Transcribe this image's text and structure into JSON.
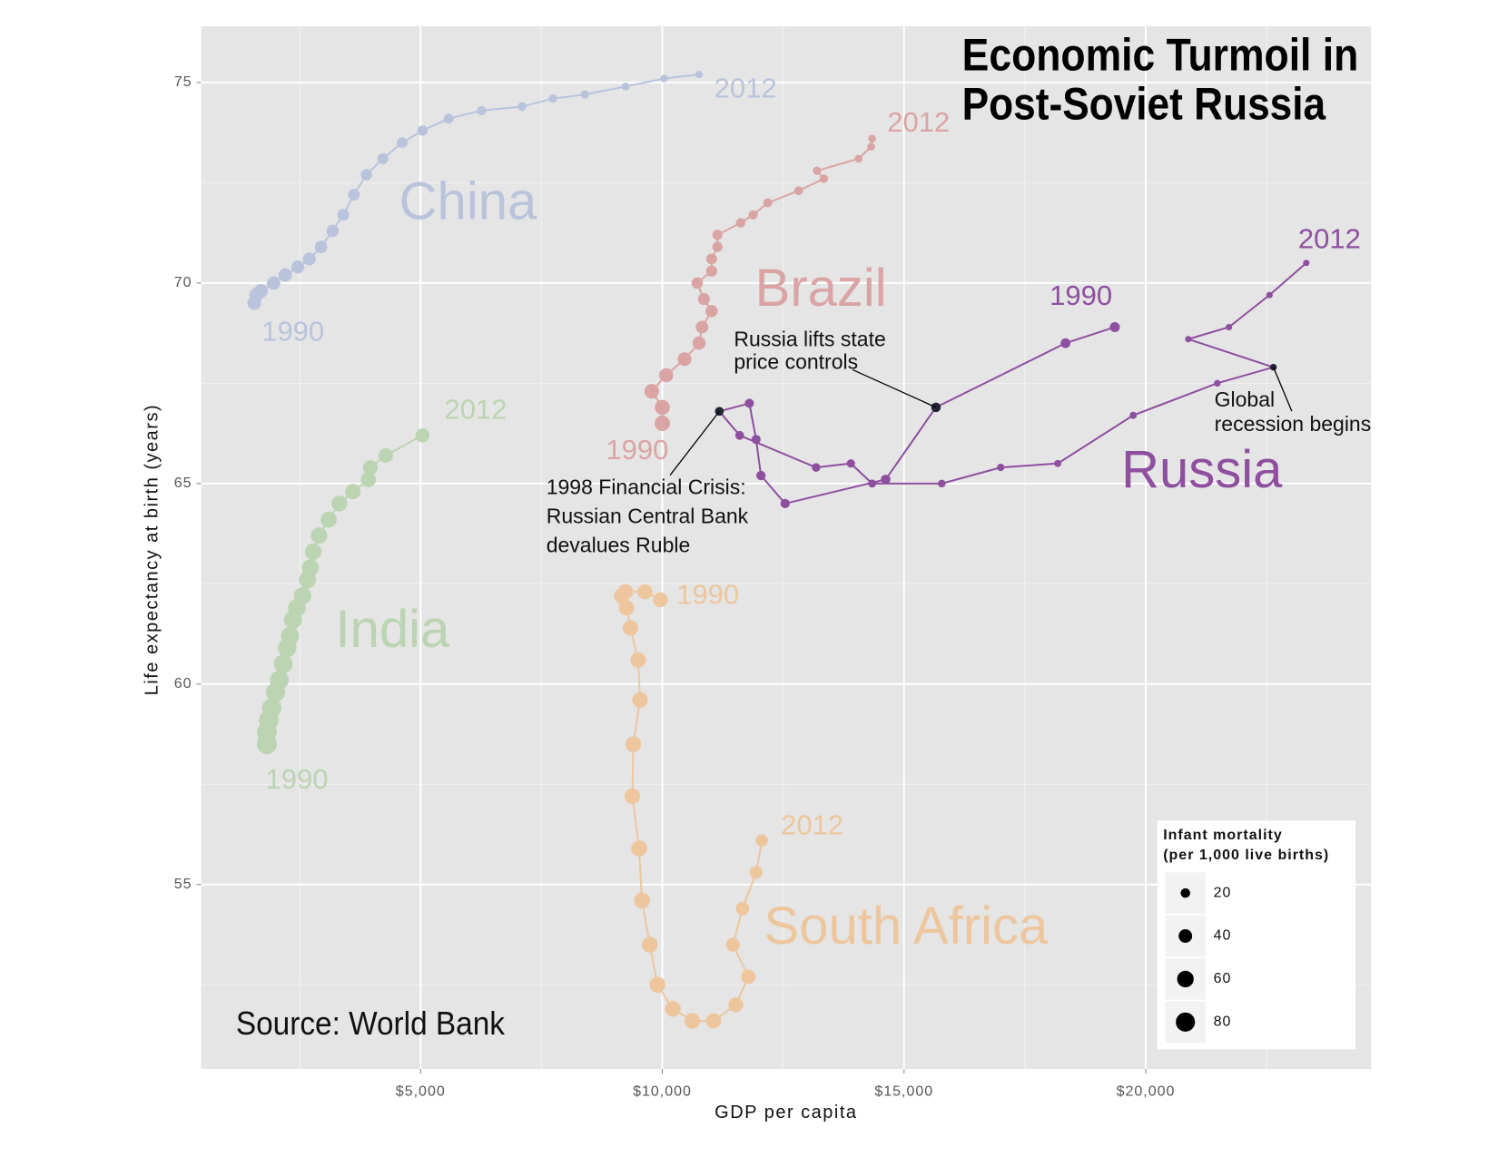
{
  "chart_data": {
    "type": "connected-scatter",
    "title": [
      "Economic Turmoil in",
      "Post-Soviet Russia"
    ],
    "source": "Source: World Bank",
    "xlabel": "GDP per capita",
    "ylabel": "Life expectancy at birth (years)",
    "xlim": [
      460,
      24660
    ],
    "ylim": [
      50.4,
      76.4
    ],
    "xticks": [
      {
        "value": 5000,
        "label": "$5,000"
      },
      {
        "value": 10000,
        "label": "$10,000"
      },
      {
        "value": 15000,
        "label": "$15,000"
      },
      {
        "value": 20000,
        "label": "$20,000"
      }
    ],
    "yticks": [
      55,
      60,
      65,
      70,
      75
    ],
    "x_minor_ticks": [
      2500,
      7500,
      12500,
      17500,
      22500
    ],
    "y_minor_ticks": [
      52.5,
      57.5,
      62.5,
      67.5,
      72.5
    ],
    "grid": true,
    "highlight_color": "#1f2533",
    "series": [
      {
        "name": "China",
        "color": "#b9c4dc",
        "start_label": "1990",
        "end_label": "2012",
        "x": [
          1560,
          1600,
          1700,
          1960,
          2200,
          2460,
          2700,
          2940,
          3180,
          3400,
          3620,
          3880,
          4220,
          4620,
          5040,
          5580,
          6260,
          7100,
          7740,
          8400,
          9240,
          10040,
          10760
        ],
        "values": [
          69.5,
          69.7,
          69.8,
          70.0,
          70.2,
          70.4,
          70.6,
          70.9,
          71.3,
          71.7,
          72.2,
          72.7,
          73.1,
          73.5,
          73.8,
          74.1,
          74.3,
          74.4,
          74.6,
          74.7,
          74.9,
          75.1,
          75.2
        ],
        "sizes": [
          42,
          42,
          41,
          40,
          39,
          37,
          36,
          34,
          33,
          31,
          30,
          28,
          26,
          25,
          23,
          21,
          19,
          17,
          16,
          15,
          14,
          13,
          12
        ]
      },
      {
        "name": "Brazil",
        "color": "#dba4a4",
        "start_label": "1990",
        "end_label": "2012",
        "x": [
          10000,
          10000,
          9780,
          10080,
          10460,
          10760,
          10820,
          11020,
          10860,
          10720,
          11020,
          11020,
          11140,
          11140,
          11620,
          11880,
          12180,
          12820,
          13340,
          13200,
          14060,
          14320,
          14340
        ],
        "values": [
          66.5,
          66.9,
          67.3,
          67.7,
          68.1,
          68.5,
          68.9,
          69.3,
          69.6,
          70.0,
          70.3,
          70.6,
          70.9,
          71.2,
          71.5,
          71.7,
          72.0,
          72.3,
          72.6,
          72.8,
          73.1,
          73.4,
          73.6
        ],
        "sizes": [
          52,
          49,
          46,
          43,
          41,
          38,
          35,
          33,
          31,
          29,
          27,
          25,
          23,
          22,
          20,
          19,
          18,
          17,
          16,
          15,
          14,
          13,
          13
        ]
      },
      {
        "name": "India",
        "color": "#bbd4b2",
        "start_label": "1990",
        "end_label": "2012",
        "x": [
          1820,
          1820,
          1860,
          1920,
          2000,
          2080,
          2160,
          2240,
          2300,
          2360,
          2440,
          2560,
          2660,
          2720,
          2780,
          2900,
          3100,
          3320,
          3600,
          3920,
          3960,
          4280,
          5040
        ],
        "values": [
          58.5,
          58.8,
          59.1,
          59.4,
          59.8,
          60.1,
          60.5,
          60.9,
          61.2,
          61.6,
          61.9,
          62.2,
          62.6,
          62.9,
          63.3,
          63.7,
          64.1,
          64.5,
          64.8,
          65.1,
          65.4,
          65.7,
          66.2
        ],
        "sizes": [
          88,
          86,
          84,
          82,
          80,
          78,
          76,
          74,
          72,
          70,
          68,
          66,
          64,
          62,
          60,
          58,
          56,
          54,
          52,
          50,
          47,
          45,
          42
        ]
      },
      {
        "name": "South Africa",
        "color": "#edc69d",
        "start_label": "1990",
        "end_label": "2012",
        "x": [
          9960,
          9640,
          9240,
          9160,
          9260,
          9340,
          9500,
          9540,
          9400,
          9380,
          9520,
          9580,
          9740,
          9900,
          10220,
          10620,
          11060,
          11520,
          11780,
          11460,
          11660,
          11940,
          12060
        ],
        "values": [
          62.1,
          62.3,
          62.3,
          62.2,
          61.9,
          61.4,
          60.6,
          59.6,
          58.5,
          57.2,
          55.9,
          54.6,
          53.5,
          52.5,
          51.9,
          51.6,
          51.6,
          52.0,
          52.7,
          53.5,
          54.4,
          55.3,
          56.1
        ],
        "sizes": [
          48,
          49,
          50,
          51,
          52,
          52,
          53,
          53,
          54,
          54,
          55,
          55,
          55,
          55,
          54,
          53,
          51,
          48,
          45,
          42,
          39,
          36,
          33
        ]
      },
      {
        "name": "Russia",
        "color": "#8e4f9f",
        "start_label": "1990",
        "end_label": "2012",
        "x": [
          19360,
          18340,
          15660,
          14620,
          12540,
          12040,
          11940,
          11800,
          11180,
          11600,
          13180,
          13900,
          14340,
          15780,
          17000,
          18180,
          19740,
          21480,
          22640,
          20880,
          21720,
          22560,
          23320
        ],
        "values": [
          68.9,
          68.5,
          66.9,
          65.1,
          64.5,
          65.2,
          66.1,
          67.0,
          66.8,
          66.2,
          65.4,
          65.5,
          65.0,
          65.0,
          65.4,
          65.5,
          66.7,
          67.5,
          67.9,
          68.6,
          68.9,
          69.7,
          70.5
        ],
        "sizes": [
          22,
          21,
          20,
          20,
          19,
          19,
          18,
          18,
          17,
          17,
          16,
          15,
          14,
          13,
          12,
          11,
          11,
          10,
          10,
          9,
          9,
          9,
          9
        ]
      }
    ],
    "annotations": [
      {
        "lines": [
          "Russia lifts state",
          "price controls"
        ]
      },
      {
        "lines": [
          "1998 Financial Crisis:",
          "Russian Central Bank",
          "devalues Ruble"
        ]
      },
      {
        "lines": [
          "Global",
          "recession begins"
        ]
      }
    ],
    "size_legend": {
      "title": [
        "Infant mortality",
        "(per 1,000 live births)"
      ],
      "values": [
        20,
        40,
        60,
        80
      ]
    }
  }
}
